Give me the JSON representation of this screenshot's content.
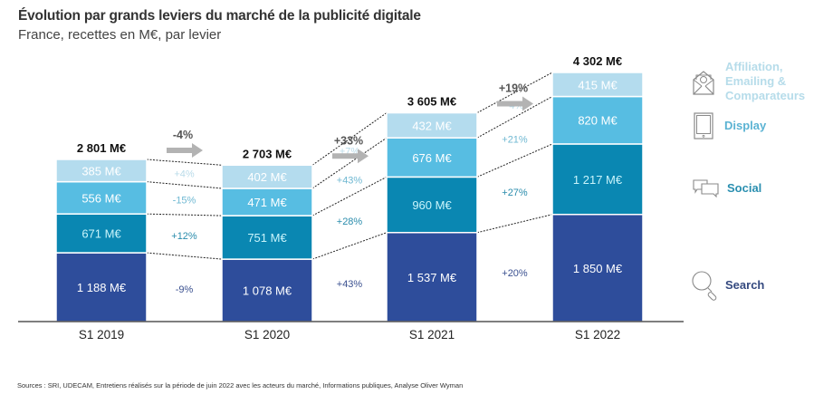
{
  "header": {
    "title": "Évolution par grands leviers du marché de la publicité digitale",
    "subtitle": "France, recettes en M€, par levier"
  },
  "footer": {
    "source": "Sources : SRI, UDECAM, Entretiens réalisés sur la période de juin 2022 avec les acteurs du marché, Informations publiques, Analyse Oliver Wyman"
  },
  "legend": [
    {
      "name": "Affiliation, Emailing & Comparateurs",
      "lines": [
        "Affiliation,",
        "Emailing &",
        "Comparateurs"
      ],
      "icon": "email-envelope-icon",
      "color": "#b6dff0"
    },
    {
      "name": "Display",
      "lines": [
        "Display"
      ],
      "icon": "tablet-icon",
      "color": "#5bbde0"
    },
    {
      "name": "Social",
      "lines": [
        "Social"
      ],
      "icon": "chat-bubbles-icon",
      "color": "#1a8fb5"
    },
    {
      "name": "Search",
      "lines": [
        "Search"
      ],
      "icon": "magnifier-icon",
      "color": "#2e4d9b"
    }
  ],
  "chart_data": {
    "type": "bar",
    "stacked": true,
    "title": "Évolution par grands leviers du marché de la publicité digitale",
    "subtitle": "France, recettes en M€, par levier",
    "xlabel": "",
    "ylabel": "",
    "unit": "M€",
    "categories": [
      "S1 2019",
      "S1 2020",
      "S1 2021",
      "S1 2022"
    ],
    "series": [
      {
        "name": "Search",
        "color": "#2e4d9b",
        "label_color": "#ffffff",
        "values": [
          1188,
          1078,
          1537,
          1850
        ],
        "labels": [
          "1 188 M€",
          "1 078 M€",
          "1 537 M€",
          "1 850 M€"
        ],
        "growth": [
          "-9%",
          "+43%",
          "+20%"
        ],
        "growth_color": "#3b5190"
      },
      {
        "name": "Social",
        "color": "#0a87b2",
        "label_color": "#c9f4fb",
        "values": [
          671,
          751,
          960,
          1217
        ],
        "labels": [
          "671 M€",
          "751 M€",
          "960 M€",
          "1 217 M€"
        ],
        "growth": [
          "+12%",
          "+28%",
          "+27%"
        ],
        "growth_color": "#2a8cac"
      },
      {
        "name": "Display",
        "color": "#57bde2",
        "label_color": "#ffffff",
        "values": [
          556,
          471,
          676,
          820
        ],
        "labels": [
          "556 M€",
          "471 M€",
          "676 M€",
          "820 M€"
        ],
        "growth": [
          "-15%",
          "+43%",
          "+21%"
        ],
        "growth_color": "#6fb8d2"
      },
      {
        "name": "Affiliation, Emailing & Comparateurs",
        "color": "#b4dcee",
        "label_color": "#ffffff",
        "values": [
          385,
          402,
          432,
          415
        ],
        "labels": [
          "385 M€",
          "402 M€",
          "432 M€",
          "415 M€"
        ],
        "growth": [
          "+4%",
          "+7%",
          "-4%"
        ],
        "growth_color": "#b9dbe9"
      }
    ],
    "totals": [
      2801,
      2703,
      3605,
      4302
    ],
    "total_labels": [
      "2 801 M€",
      "2 703 M€",
      "3 605 M€",
      "4 302 M€"
    ],
    "total_growth": [
      "-4%",
      "+33%",
      "+19%"
    ],
    "ylim": [
      0,
      4302
    ],
    "grid": false,
    "legend_position": "right"
  }
}
